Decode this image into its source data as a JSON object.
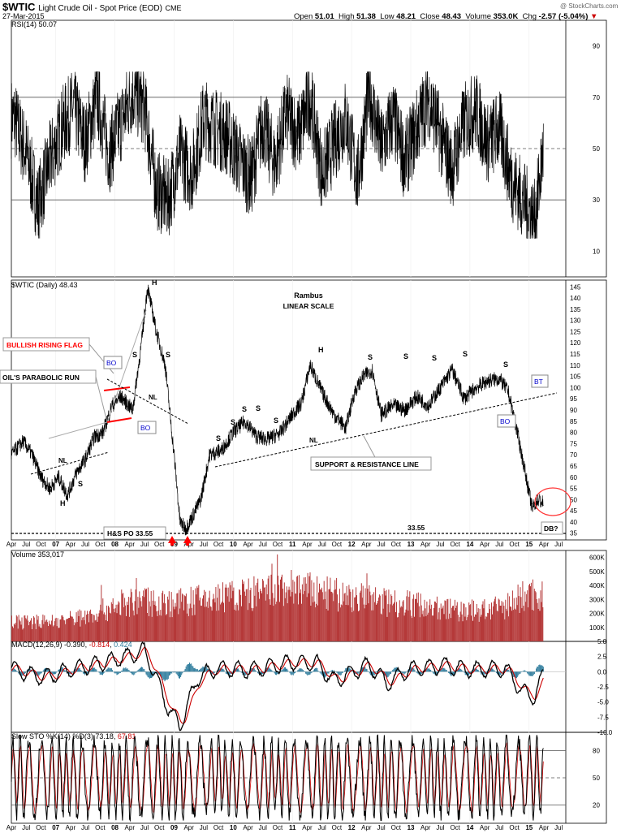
{
  "header": {
    "symbol": "$WTIC",
    "name": "Light Crude Oil - Spot Price (EOD)",
    "exchange": "CME",
    "date": "27-Mar-2015",
    "watermark": "@ StockCharts.com",
    "open_label": "Open",
    "open": "51.01",
    "high_label": "High",
    "high": "51.38",
    "low_label": "Low",
    "low": "48.21",
    "close_label": "Close",
    "close": "48.43",
    "volume_label": "Volume",
    "volume": "353.0K",
    "chg_label": "Chg",
    "chg": "-2.57 (-5.04%)",
    "down_color": "#cc0000"
  },
  "chart_data": [
    {
      "panel": "rsi",
      "type": "line",
      "legend": "RSI(14) 50.07",
      "ylim": [
        0,
        100
      ],
      "yticks": [
        10,
        30,
        50,
        70,
        90
      ],
      "reference_lines": [
        30,
        50,
        70
      ],
      "approx_series": {
        "x": [
          2006.3,
          2006.5,
          2006.7,
          2006.9,
          2007.1,
          2007.3,
          2007.5,
          2007.7,
          2007.9,
          2008.1,
          2008.3,
          2008.5,
          2008.7,
          2008.9,
          2009.1,
          2009.3,
          2009.5,
          2009.7,
          2009.9,
          2010.1,
          2010.3,
          2010.5,
          2010.7,
          2010.9,
          2011.1,
          2011.3,
          2011.5,
          2011.7,
          2011.9,
          2012.1,
          2012.3,
          2012.5,
          2012.7,
          2012.9,
          2013.1,
          2013.3,
          2013.5,
          2013.7,
          2013.9,
          2014.1,
          2014.3,
          2014.5,
          2014.7,
          2014.9,
          2015.1,
          2015.24
        ],
        "y": [
          62,
          48,
          28,
          45,
          58,
          66,
          52,
          70,
          48,
          60,
          72,
          66,
          34,
          30,
          48,
          40,
          62,
          58,
          55,
          46,
          38,
          60,
          44,
          64,
          55,
          70,
          40,
          52,
          62,
          38,
          72,
          50,
          62,
          45,
          58,
          70,
          55,
          42,
          60,
          65,
          52,
          58,
          38,
          30,
          22,
          50.07
        ]
      },
      "oversold_color": "#c08080"
    },
    {
      "panel": "price",
      "type": "line",
      "legend": "$WTIC (Daily) 48.43",
      "title": "Rambus",
      "subtitle": "LINEAR SCALE",
      "ylim": [
        32,
        148
      ],
      "yticks": [
        35,
        40,
        45,
        50,
        55,
        60,
        65,
        70,
        75,
        80,
        85,
        90,
        95,
        100,
        105,
        110,
        115,
        120,
        125,
        130,
        135,
        140,
        145
      ],
      "series": [
        {
          "name": "$WTIC",
          "x": [
            2006.25,
            2006.45,
            2006.6,
            2006.75,
            2006.9,
            2007.05,
            2007.2,
            2007.35,
            2007.5,
            2007.65,
            2007.8,
            2007.95,
            2008.1,
            2008.3,
            2008.45,
            2008.55,
            2008.7,
            2008.85,
            2009.0,
            2009.1,
            2009.2,
            2009.3,
            2009.45,
            2009.6,
            2009.8,
            2010.0,
            2010.2,
            2010.4,
            2010.6,
            2010.8,
            2011.0,
            2011.15,
            2011.3,
            2011.5,
            2011.7,
            2011.9,
            2012.05,
            2012.2,
            2012.35,
            2012.5,
            2012.7,
            2012.9,
            2013.1,
            2013.3,
            2013.5,
            2013.7,
            2013.9,
            2014.1,
            2014.3,
            2014.5,
            2014.65,
            2014.8,
            2014.95,
            2015.05,
            2015.15,
            2015.24
          ],
          "y": [
            70,
            76,
            70,
            60,
            55,
            60,
            52,
            62,
            68,
            78,
            80,
            92,
            96,
            90,
            120,
            145,
            125,
            110,
            70,
            40,
            37,
            42,
            50,
            70,
            72,
            80,
            85,
            78,
            77,
            80,
            88,
            93,
            110,
            98,
            88,
            82,
            98,
            105,
            108,
            88,
            92,
            90,
            96,
            92,
            100,
            108,
            95,
            100,
            103,
            104,
            98,
            80,
            60,
            46,
            50,
            48.43
          ]
        }
      ],
      "x_axis": [
        "Apr",
        "Jul",
        "Oct",
        "07",
        "Apr",
        "Jul",
        "Oct",
        "08",
        "Apr",
        "Jul",
        "Oct",
        "09",
        "Apr",
        "Jul",
        "Oct",
        "10",
        "Apr",
        "Jul",
        "Oct",
        "11",
        "Apr",
        "Jul",
        "Oct",
        "12",
        "Apr",
        "Jul",
        "Oct",
        "13",
        "Apr",
        "Jul",
        "Oct",
        "14",
        "Apr",
        "Jul",
        "Oct",
        "15",
        "Apr",
        "Jul"
      ],
      "annotations": {
        "bullish_flag": "BULLISH RISING FLAG",
        "parabolic_run": "OIL'S PARABOLIC RUN",
        "support_resistance": "SUPPORT & RESISTANCE LINE",
        "hs_po": "H&S PO 33.55",
        "level_3355": "33.55",
        "db": "DB?",
        "bo": "BO",
        "bt": "BT",
        "nl": "NL",
        "h": "H",
        "s": "S"
      },
      "hs_po_level": 33.55,
      "flag_color": "#ff0000",
      "callout_color": "#0000cc"
    },
    {
      "panel": "volume",
      "type": "bar",
      "legend": "Volume 353,017",
      "ylim": [
        0,
        650000
      ],
      "yticks_labels": [
        "100K",
        "200K",
        "300K",
        "400K",
        "500K",
        "600K"
      ],
      "yticks_values": [
        100000,
        200000,
        300000,
        400000,
        500000,
        600000
      ],
      "bar_color": "#b53939",
      "approx_envelope": {
        "x": [
          2006.25,
          2007.0,
          2007.5,
          2008.0,
          2008.5,
          2009.0,
          2009.5,
          2010.0,
          2010.5,
          2011.0,
          2011.5,
          2012.0,
          2012.5,
          2013.0,
          2013.5,
          2014.0,
          2014.5,
          2015.0,
          2015.24
        ],
        "y": [
          150000,
          160000,
          200000,
          280000,
          320000,
          300000,
          330000,
          360000,
          380000,
          420000,
          380000,
          350000,
          320000,
          300000,
          260000,
          240000,
          260000,
          380000,
          353017
        ]
      }
    },
    {
      "panel": "macd",
      "type": "line",
      "legend_name": "MACD(12,26,9)",
      "macd_value": "-0.390",
      "signal_value": "-0.814",
      "hist_value": "0.424",
      "ylim": [
        -10,
        5
      ],
      "yticks": [
        5.0,
        2.5,
        0.0,
        -2.5,
        -5.0,
        -7.5,
        -10.0
      ],
      "macd_color": "#000000",
      "signal_color": "#cc0000",
      "hist_color": "#2b7a9b"
    },
    {
      "panel": "sto",
      "type": "line",
      "legend_name": "Slow STO %K(14) %D(3)",
      "k_value": "73.18",
      "d_value": "67.81",
      "ylim": [
        0,
        100
      ],
      "yticks": [
        20,
        50,
        80
      ],
      "k_color": "#000000",
      "d_color": "#cc0000"
    }
  ]
}
